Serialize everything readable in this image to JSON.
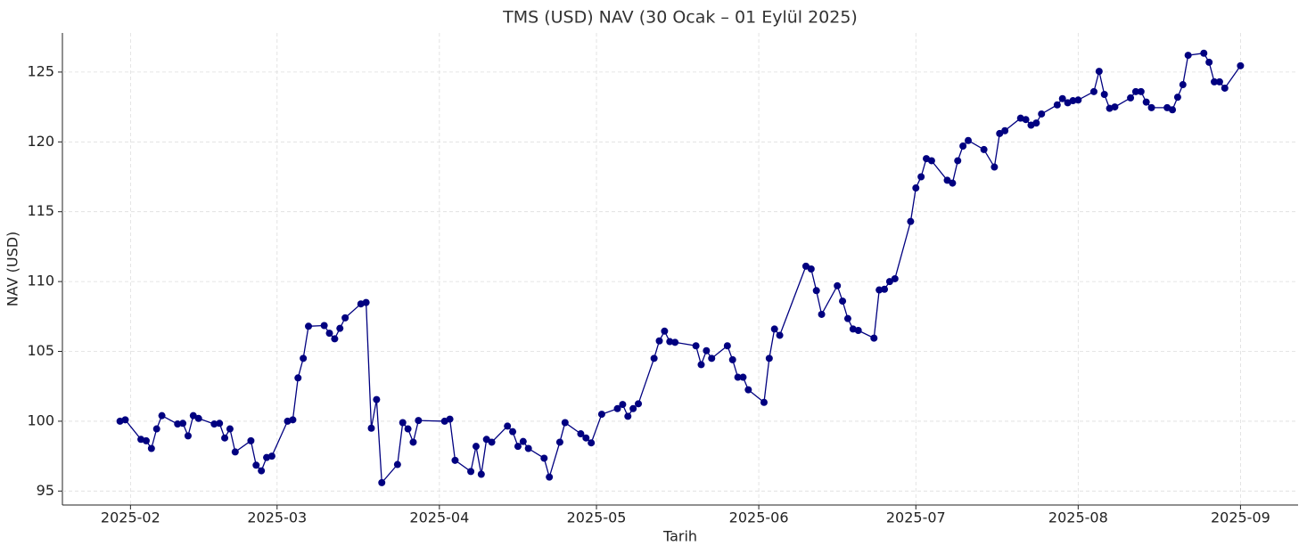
{
  "chart_data": {
    "type": "line",
    "title": "TMS (USD) NAV (30 Ocak – 01 Eylül 2025)",
    "x_label": "Tarih",
    "y_label": "NAV (USD)",
    "x": [
      "2025-01-30",
      "2025-01-31",
      "2025-02-03",
      "2025-02-04",
      "2025-02-05",
      "2025-02-06",
      "2025-02-07",
      "2025-02-10",
      "2025-02-11",
      "2025-02-12",
      "2025-02-13",
      "2025-02-14",
      "2025-02-17",
      "2025-02-18",
      "2025-02-19",
      "2025-02-20",
      "2025-02-21",
      "2025-02-24",
      "2025-02-25",
      "2025-02-26",
      "2025-02-27",
      "2025-02-28",
      "2025-03-03",
      "2025-03-04",
      "2025-03-05",
      "2025-03-06",
      "2025-03-07",
      "2025-03-10",
      "2025-03-11",
      "2025-03-12",
      "2025-03-13",
      "2025-03-14",
      "2025-03-17",
      "2025-03-18",
      "2025-03-19",
      "2025-03-20",
      "2025-03-21",
      "2025-03-24",
      "2025-03-25",
      "2025-03-26",
      "2025-03-27",
      "2025-03-28",
      "2025-04-02",
      "2025-04-03",
      "2025-04-04",
      "2025-04-07",
      "2025-04-08",
      "2025-04-09",
      "2025-04-10",
      "2025-04-11",
      "2025-04-14",
      "2025-04-15",
      "2025-04-16",
      "2025-04-17",
      "2025-04-18",
      "2025-04-21",
      "2025-04-22",
      "2025-04-24",
      "2025-04-25",
      "2025-04-28",
      "2025-04-29",
      "2025-04-30",
      "2025-05-02",
      "2025-05-05",
      "2025-05-06",
      "2025-05-07",
      "2025-05-08",
      "2025-05-09",
      "2025-05-12",
      "2025-05-13",
      "2025-05-14",
      "2025-05-15",
      "2025-05-16",
      "2025-05-20",
      "2025-05-21",
      "2025-05-22",
      "2025-05-23",
      "2025-05-26",
      "2025-05-27",
      "2025-05-28",
      "2025-05-29",
      "2025-05-30",
      "2025-06-02",
      "2025-06-03",
      "2025-06-04",
      "2025-06-05",
      "2025-06-10",
      "2025-06-11",
      "2025-06-12",
      "2025-06-13",
      "2025-06-16",
      "2025-06-17",
      "2025-06-18",
      "2025-06-19",
      "2025-06-20",
      "2025-06-23",
      "2025-06-24",
      "2025-06-25",
      "2025-06-26",
      "2025-06-27",
      "2025-06-30",
      "2025-07-01",
      "2025-07-02",
      "2025-07-03",
      "2025-07-04",
      "2025-07-07",
      "2025-07-08",
      "2025-07-09",
      "2025-07-10",
      "2025-07-11",
      "2025-07-14",
      "2025-07-16",
      "2025-07-17",
      "2025-07-18",
      "2025-07-21",
      "2025-07-22",
      "2025-07-23",
      "2025-07-24",
      "2025-07-25",
      "2025-07-28",
      "2025-07-29",
      "2025-07-30",
      "2025-07-31",
      "2025-08-01",
      "2025-08-04",
      "2025-08-05",
      "2025-08-06",
      "2025-08-07",
      "2025-08-08",
      "2025-08-11",
      "2025-08-12",
      "2025-08-13",
      "2025-08-14",
      "2025-08-15",
      "2025-08-18",
      "2025-08-19",
      "2025-08-20",
      "2025-08-21",
      "2025-08-22",
      "2025-08-25",
      "2025-08-26",
      "2025-08-27",
      "2025-08-28",
      "2025-08-29",
      "2025-09-01"
    ],
    "series": [
      {
        "name": "NAV (USD)",
        "color": "#000080",
        "values": [
          100.0,
          100.1,
          98.7,
          98.6,
          98.05,
          99.45,
          100.4,
          99.8,
          99.85,
          98.95,
          100.4,
          100.2,
          99.8,
          99.85,
          98.8,
          99.45,
          97.8,
          98.6,
          96.85,
          96.45,
          97.4,
          97.5,
          100.0,
          100.1,
          103.1,
          104.5,
          106.8,
          106.85,
          106.3,
          105.9,
          106.65,
          107.4,
          108.4,
          108.5,
          99.5,
          101.55,
          95.6,
          96.9,
          99.9,
          99.45,
          98.5,
          100.05,
          100.0,
          100.15,
          97.2,
          96.4,
          98.2,
          96.2,
          98.7,
          98.5,
          99.65,
          99.25,
          98.2,
          98.55,
          98.05,
          97.35,
          96.0,
          98.5,
          99.9,
          99.1,
          98.8,
          98.45,
          100.5,
          100.9,
          101.2,
          100.35,
          100.9,
          101.25,
          104.5,
          105.75,
          106.45,
          105.7,
          105.65,
          105.4,
          104.05,
          105.05,
          104.5,
          105.4,
          104.4,
          103.15,
          103.15,
          102.25,
          101.35,
          104.5,
          106.6,
          106.15,
          111.1,
          110.9,
          109.35,
          107.65,
          109.7,
          108.6,
          107.35,
          106.6,
          106.5,
          105.95,
          109.4,
          109.45,
          110.0,
          110.2,
          114.3,
          116.7,
          117.5,
          118.8,
          118.65,
          117.25,
          117.05,
          118.65,
          119.7,
          120.1,
          119.45,
          118.2,
          120.6,
          120.8,
          121.7,
          121.6,
          121.2,
          121.35,
          122.0,
          122.65,
          123.1,
          122.8,
          122.95,
          123.0,
          123.6,
          125.05,
          123.4,
          122.4,
          122.5,
          123.15,
          123.6,
          123.6,
          122.85,
          122.45,
          122.45,
          122.3,
          123.2,
          124.1,
          126.2,
          126.35,
          125.7,
          124.3,
          124.3,
          123.85,
          125.45
        ]
      }
    ],
    "xlim": [
      "2025-01-19",
      "2025-09-12"
    ],
    "xticks": [
      "2025-02",
      "2025-03",
      "2025-04",
      "2025-05",
      "2025-06",
      "2025-07",
      "2025-08",
      "2025-09"
    ],
    "ylim": [
      94,
      127.8
    ],
    "yticks": [
      95,
      100,
      105,
      110,
      115,
      120,
      125
    ],
    "grid": true
  }
}
